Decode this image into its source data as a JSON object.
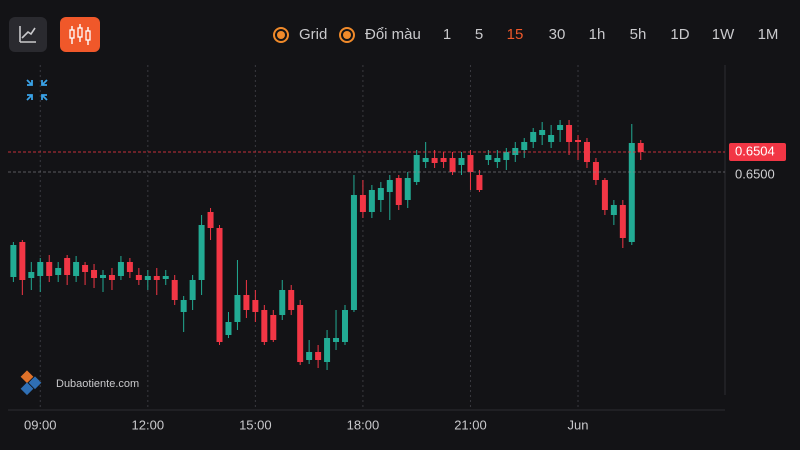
{
  "toolbar": {
    "grid_label": "Grid",
    "color_label": "Đổi màu",
    "intervals": [
      "1",
      "5",
      "15",
      "30",
      "1h",
      "5h",
      "1D",
      "1W",
      "1M"
    ],
    "active_interval": "15"
  },
  "watermark": "Dubaotiente.com",
  "chart_data": {
    "type": "candlestick",
    "x": [
      8.25,
      8.5,
      8.75,
      9,
      9.25,
      9.5,
      9.75,
      10,
      10.25,
      10.5,
      10.75,
      11,
      11.25,
      11.5,
      11.75,
      12,
      12.25,
      12.5,
      12.75,
      13,
      13.25,
      13.5,
      13.75,
      14,
      14.25,
      14.5,
      14.75,
      15,
      15.25,
      15.5,
      15.75,
      16,
      16.25,
      16.5,
      16.75,
      17,
      17.25,
      17.5,
      17.75,
      18,
      18.25,
      18.5,
      18.75,
      19,
      19.25,
      19.5,
      19.75,
      20,
      20.25,
      20.5,
      20.75,
      21,
      21.25,
      21.5,
      21.75,
      22,
      22.25,
      22.5,
      22.75,
      23,
      23.25,
      23.5,
      23.75,
      24,
      24.25,
      24.5,
      24.75,
      25,
      25.25,
      25.5,
      25.75
    ],
    "open": [
      0.6479,
      0.6486,
      0.64788,
      0.64792,
      0.6482,
      0.64794,
      0.64828,
      0.64792,
      0.64814,
      0.64804,
      0.64788,
      0.64794,
      0.64792,
      0.6482,
      0.64794,
      0.64784,
      0.64792,
      0.64786,
      0.64784,
      0.6472,
      0.64744,
      0.64784,
      0.6492,
      0.64888,
      0.64674,
      0.647,
      0.64754,
      0.64744,
      0.64724,
      0.64714,
      0.64714,
      0.64764,
      0.64734,
      0.64624,
      0.6464,
      0.6462,
      0.6466,
      0.6466,
      0.64724,
      0.64954,
      0.6492,
      0.64944,
      0.6496,
      0.64988,
      0.64944,
      0.6498,
      0.6502,
      0.65028,
      0.65028,
      0.65028,
      0.65014,
      0.65034,
      0.64994,
      0.65024,
      0.6502,
      0.65024,
      0.65034,
      0.65044,
      0.6506,
      0.65074,
      0.6506,
      0.65084,
      0.65094,
      0.65064,
      0.6506,
      0.6502,
      0.64984,
      0.64914,
      0.64934,
      0.6486,
      0.65058
    ],
    "high": [
      0.6486,
      0.64864,
      0.6482,
      0.64828,
      0.64834,
      0.6482,
      0.64834,
      0.64832,
      0.6482,
      0.64816,
      0.64804,
      0.64808,
      0.64832,
      0.64828,
      0.64808,
      0.64804,
      0.64808,
      0.64804,
      0.64794,
      0.64752,
      0.64794,
      0.64914,
      0.64928,
      0.64894,
      0.6472,
      0.64824,
      0.64784,
      0.64764,
      0.64734,
      0.64724,
      0.64784,
      0.64774,
      0.64744,
      0.64664,
      0.64654,
      0.64684,
      0.64724,
      0.64734,
      0.64994,
      0.64984,
      0.64974,
      0.6498,
      0.64994,
      0.64994,
      0.65,
      0.65044,
      0.6506,
      0.65044,
      0.6504,
      0.6504,
      0.6504,
      0.65044,
      0.65004,
      0.65044,
      0.65044,
      0.65048,
      0.6506,
      0.65068,
      0.65088,
      0.651,
      0.65094,
      0.65104,
      0.65104,
      0.65074,
      0.65068,
      0.65028,
      0.64988,
      0.64944,
      0.64944,
      0.65096,
      0.65064
    ],
    "low": [
      0.6478,
      0.64754,
      0.64764,
      0.6476,
      0.6478,
      0.6478,
      0.64774,
      0.6478,
      0.64774,
      0.64768,
      0.6476,
      0.64764,
      0.64784,
      0.64788,
      0.64774,
      0.64764,
      0.64754,
      0.64774,
      0.64734,
      0.6468,
      0.64724,
      0.64754,
      0.64864,
      0.64654,
      0.64668,
      0.64684,
      0.64708,
      0.647,
      0.64654,
      0.6466,
      0.64704,
      0.64714,
      0.64614,
      0.64616,
      0.64608,
      0.64604,
      0.64644,
      0.64654,
      0.6472,
      0.64908,
      0.64908,
      0.6492,
      0.64904,
      0.64924,
      0.64928,
      0.64974,
      0.65008,
      0.65008,
      0.65008,
      0.64994,
      0.64994,
      0.64964,
      0.6496,
      0.65014,
      0.65008,
      0.65004,
      0.6502,
      0.65028,
      0.65048,
      0.65054,
      0.65048,
      0.6506,
      0.65034,
      0.65024,
      0.65008,
      0.64974,
      0.64914,
      0.64894,
      0.64848,
      0.64854,
      0.65024
    ],
    "close": [
      0.64854,
      0.64784,
      0.648,
      0.6482,
      0.64792,
      0.64808,
      0.64794,
      0.6482,
      0.648,
      0.64788,
      0.64794,
      0.64784,
      0.6482,
      0.648,
      0.64784,
      0.64792,
      0.64784,
      0.64792,
      0.64744,
      0.64744,
      0.64784,
      0.64894,
      0.64888,
      0.6466,
      0.647,
      0.64754,
      0.64724,
      0.6472,
      0.6466,
      0.64664,
      0.64764,
      0.64724,
      0.6462,
      0.6464,
      0.64624,
      0.64668,
      0.64668,
      0.64724,
      0.64954,
      0.6492,
      0.64964,
      0.64968,
      0.64984,
      0.64934,
      0.64988,
      0.65034,
      0.65028,
      0.65018,
      0.6502,
      0.65,
      0.65028,
      0.65,
      0.64964,
      0.65034,
      0.65028,
      0.6504,
      0.65048,
      0.6506,
      0.6508,
      0.65084,
      0.65074,
      0.65094,
      0.6506,
      0.6506,
      0.6502,
      0.64984,
      0.64924,
      0.64934,
      0.64868,
      0.65058,
      0.6504
    ],
    "up_color": "#22ab94",
    "down_color": "#f23645",
    "xlim": [
      8.1,
      28.1
    ],
    "ylim": [
      0.64524,
      0.65304
    ],
    "xticks": [
      {
        "value": 9,
        "label": "09:00"
      },
      {
        "value": 12,
        "label": "12:00"
      },
      {
        "value": 15,
        "label": "15:00"
      },
      {
        "value": 18,
        "label": "18:00"
      },
      {
        "value": 21,
        "label": "21:00"
      },
      {
        "value": 24,
        "label": "Jun"
      }
    ],
    "grid": true,
    "price_lines": [
      {
        "value": 0.6504,
        "label": "0.6504",
        "color": "#f23645"
      },
      {
        "value": 0.65,
        "label": "0.6500",
        "color": "#8a8a8f"
      }
    ]
  }
}
